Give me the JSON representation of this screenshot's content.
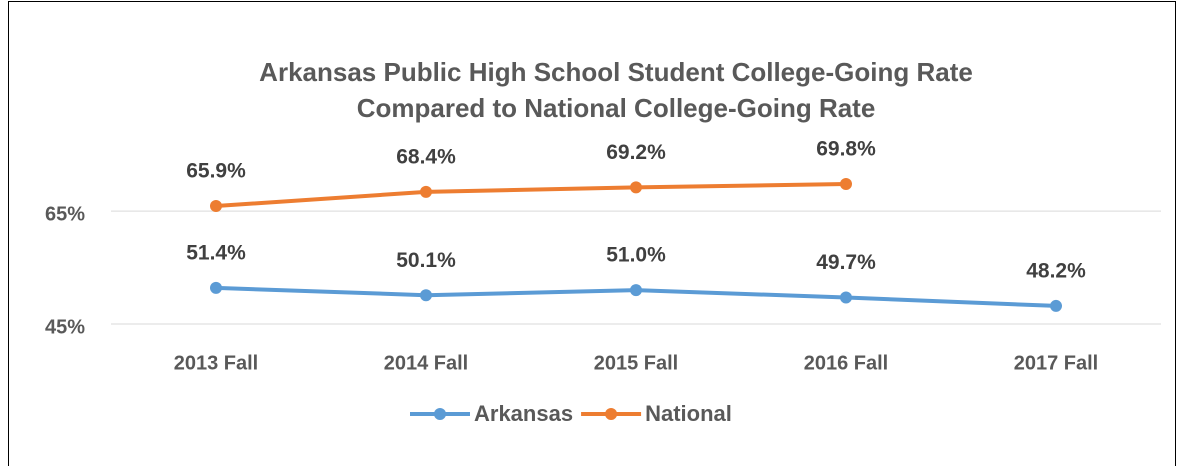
{
  "chart_data": {
    "type": "line",
    "title": [
      "Arkansas Public High School Student College-Going Rate",
      "Compared to National College-Going Rate"
    ],
    "categories": [
      "2013 Fall",
      "2014 Fall",
      "2015 Fall",
      "2016 Fall",
      "2017 Fall"
    ],
    "series": [
      {
        "name": "Arkansas",
        "color": "#5b9bd5",
        "values": [
          51.4,
          50.1,
          51.0,
          49.7,
          48.2
        ],
        "value_labels": [
          "51.4%",
          "50.1%",
          "51.0%",
          "49.7%",
          "48.2%"
        ]
      },
      {
        "name": "National",
        "color": "#ed7d31",
        "values": [
          65.9,
          68.4,
          69.2,
          69.8,
          null
        ],
        "value_labels": [
          "65.9%",
          "68.4%",
          "69.2%",
          "69.8%",
          null
        ]
      }
    ],
    "ylim": [
      45,
      76
    ],
    "yticks": [
      {
        "value": 45,
        "label": "45%"
      },
      {
        "value": 65,
        "label": "65%"
      }
    ],
    "grid": true,
    "legend": "bottom"
  }
}
